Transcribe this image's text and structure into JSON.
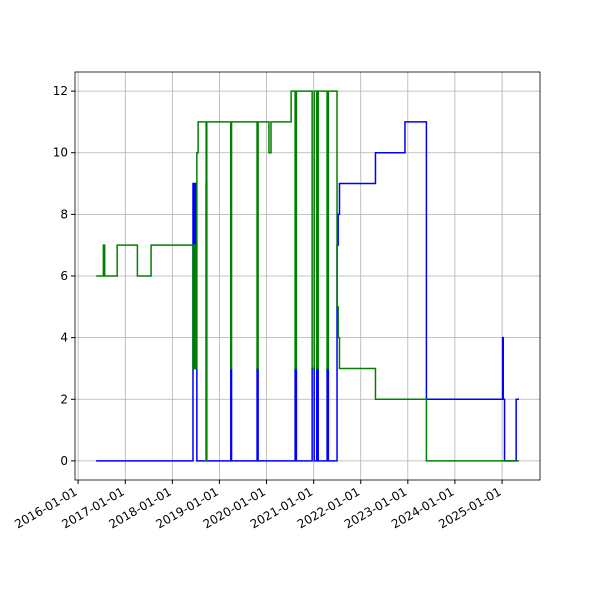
{
  "chart_data": {
    "type": "step",
    "xlim": [
      "2015-12-08",
      "2025-10-22"
    ],
    "ylim": [
      -0.62,
      12.62
    ],
    "xticks": [
      "2016-01-01",
      "2017-01-01",
      "2018-01-01",
      "2019-01-01",
      "2020-01-01",
      "2021-01-01",
      "2022-01-01",
      "2023-01-01",
      "2024-01-01",
      "2025-01-01"
    ],
    "yticks": [
      0,
      2,
      4,
      6,
      8,
      10,
      12
    ],
    "grid": true,
    "series": [
      {
        "color": "#0000ff",
        "x": [
          "2016-05-20",
          "2018-06-10",
          "2018-06-15",
          "2018-06-20",
          "2018-07-01",
          "2018-07-10",
          "2018-09-20",
          "2018-09-25",
          "2019-03-30",
          "2019-04-05",
          "2019-10-20",
          "2019-10-28",
          "2020-08-10",
          "2020-08-20",
          "2020-12-20",
          "2021-01-05",
          "2021-01-25",
          "2021-02-05",
          "2021-04-15",
          "2021-04-25",
          "2021-07-01",
          "2021-07-10",
          "2021-07-20",
          "2022-04-25",
          "2022-12-10",
          "2023-05-25",
          "2025-01-05",
          "2025-01-10",
          "2025-01-20",
          "2025-04-20",
          "2025-05-12"
        ],
        "values": [
          0,
          9,
          3,
          9,
          3,
          0,
          9,
          0,
          3,
          0,
          3,
          0,
          3,
          0,
          3,
          0,
          3,
          0,
          3,
          0,
          7,
          8,
          9,
          10,
          11,
          2,
          4,
          2,
          0,
          2,
          2
        ]
      },
      {
        "color": "#008000",
        "x": [
          "2016-05-20",
          "2016-07-15",
          "2016-07-25",
          "2016-10-30",
          "2017-04-05",
          "2017-07-20",
          "2018-06-10",
          "2018-06-20",
          "2018-07-01",
          "2018-07-10",
          "2018-07-20",
          "2018-09-20",
          "2018-09-25",
          "2019-03-30",
          "2019-04-05",
          "2019-10-20",
          "2019-10-28",
          "2020-01-20",
          "2020-02-05",
          "2020-07-10",
          "2020-08-10",
          "2020-08-20",
          "2020-12-20",
          "2021-01-05",
          "2021-01-25",
          "2021-02-05",
          "2021-04-15",
          "2021-04-25",
          "2021-07-01",
          "2021-07-10",
          "2021-07-20",
          "2022-04-25",
          "2023-05-25",
          "2025-05-12"
        ],
        "values": [
          6,
          7,
          6,
          7,
          6,
          7,
          3,
          7,
          3,
          10,
          11,
          0,
          11,
          3,
          11,
          3,
          11,
          10,
          11,
          12,
          3,
          12,
          3,
          12,
          3,
          12,
          3,
          12,
          5,
          4,
          3,
          2,
          0,
          0
        ]
      }
    ]
  }
}
